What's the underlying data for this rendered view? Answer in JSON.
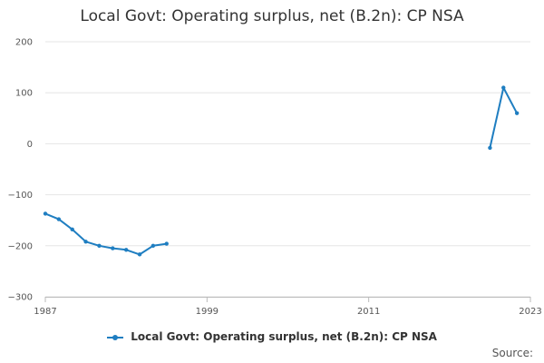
{
  "chart_data": {
    "type": "line",
    "title": "Local Govt: Operating surplus, net (B.2n): CP NSA",
    "xlabel": "",
    "ylabel": "",
    "xlim": [
      1987,
      2023
    ],
    "ylim": [
      -300,
      200
    ],
    "x_ticks": [
      "1987",
      "1999",
      "2011",
      "2023"
    ],
    "y_ticks": [
      "200",
      "100",
      "0",
      "−100",
      "−200",
      "−300"
    ],
    "y_tick_values": [
      200,
      100,
      0,
      -100,
      -200,
      -300
    ],
    "x_tick_values": [
      1987,
      1999,
      2011,
      2023
    ],
    "grid": true,
    "legend_position": "bottom",
    "series": [
      {
        "name": "Local Govt: Operating surplus, net (B.2n): CP NSA",
        "color": "#1f7ec1",
        "segments": [
          {
            "x": [
              1987,
              1988,
              1989,
              1990,
              1991,
              1992,
              1993,
              1994,
              1995,
              1996
            ],
            "y": [
              -137,
              -148,
              -168,
              -192,
              -200,
              -205,
              -208,
              -217,
              -200,
              -196
            ]
          },
          {
            "x": [
              2020,
              2021,
              2022
            ],
            "y": [
              -8,
              110,
              60
            ]
          }
        ]
      }
    ]
  },
  "legend": {
    "label": "Local Govt: Operating surplus, net (B.2n): CP NSA",
    "color": "#1f7ec1"
  },
  "source": {
    "label": "Source:"
  }
}
